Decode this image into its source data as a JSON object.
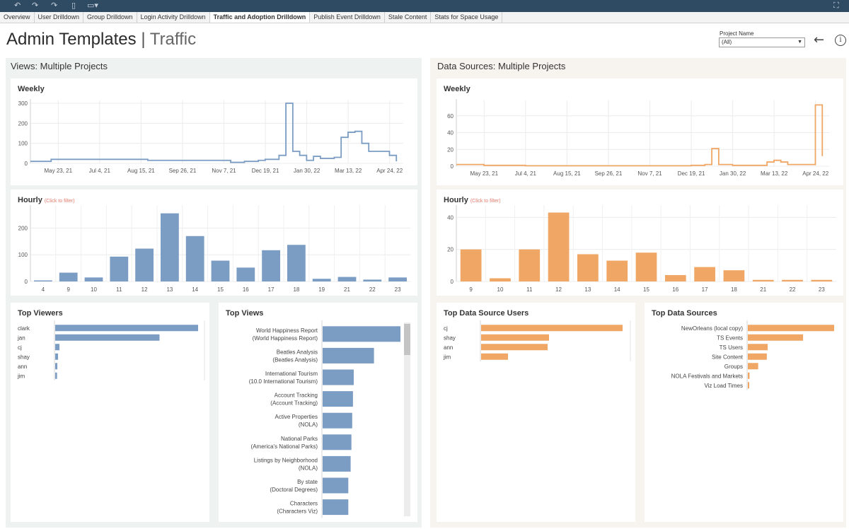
{
  "toolbar": {
    "undo_icon": "undo-icon",
    "redo_icon": "redo-icon",
    "revert_icon": "revert-icon",
    "fullscreen_icon": "fullscreen-icon"
  },
  "tabs": [
    {
      "label": "Overview",
      "active": false
    },
    {
      "label": "User Drilldown",
      "active": false
    },
    {
      "label": "Group Drilldown",
      "active": false
    },
    {
      "label": "Login Activity Drilldown",
      "active": false
    },
    {
      "label": "Traffic and Adoption Drilldown",
      "active": true
    },
    {
      "label": "Publish Event Drilldown",
      "active": false
    },
    {
      "label": "Stale Content",
      "active": false
    },
    {
      "label": "Stats for Space Usage",
      "active": false
    }
  ],
  "header": {
    "title": "Admin Templates",
    "separator": "|",
    "subtitle": "Traffic",
    "filter_label": "Project Name",
    "filter_value": "(All)"
  },
  "colors": {
    "views": "#7b9cc3",
    "data_sources": "#f0a766",
    "hint": "#e07a6a"
  },
  "views_panel": {
    "title": "Views: Multiple Projects",
    "weekly_title": "Weekly",
    "hourly_title": "Hourly",
    "hourly_hint": "(Click to filter)",
    "top_viewers_title": "Top Viewers",
    "top_views_title": "Top Views"
  },
  "ds_panel": {
    "title": "Data Sources: Multiple Projects",
    "weekly_title": "Weekly",
    "hourly_title": "Hourly",
    "hourly_hint": "(Click to filter)",
    "top_users_title": "Top Data Source Users",
    "top_sources_title": "Top Data Sources"
  },
  "chart_data": [
    {
      "id": "views_weekly",
      "type": "line",
      "title": "Weekly",
      "x_tick_labels": [
        "May 23, 21",
        "Jul 4, 21",
        "Aug 15, 21",
        "Sep 26, 21",
        "Nov 7, 21",
        "Dec 19, 21",
        "Jan 30, 22",
        "Mar 13, 22",
        "Apr 24, 22"
      ],
      "y_ticks": [
        0,
        100,
        200,
        300
      ],
      "ylim": [
        0,
        300
      ],
      "x_start": "2021-04-25",
      "x_end": "2022-05-08",
      "points": [
        [
          "2021-04-25",
          10
        ],
        [
          "2021-05-09",
          10
        ],
        [
          "2021-05-16",
          20
        ],
        [
          "2021-05-23",
          20
        ],
        [
          "2021-06-06",
          20
        ],
        [
          "2021-08-15",
          20
        ],
        [
          "2021-08-22",
          15
        ],
        [
          "2021-09-26",
          15
        ],
        [
          "2021-10-31",
          15
        ],
        [
          "2021-11-07",
          15
        ],
        [
          "2021-11-14",
          5
        ],
        [
          "2021-11-21",
          5
        ],
        [
          "2021-11-28",
          10
        ],
        [
          "2021-12-12",
          15
        ],
        [
          "2021-12-19",
          20
        ],
        [
          "2022-01-02",
          40
        ],
        [
          "2022-01-09",
          300
        ],
        [
          "2022-01-16",
          60
        ],
        [
          "2022-01-23",
          40
        ],
        [
          "2022-01-30",
          15
        ],
        [
          "2022-02-06",
          35
        ],
        [
          "2022-02-13",
          25
        ],
        [
          "2022-02-20",
          25
        ],
        [
          "2022-02-27",
          30
        ],
        [
          "2022-03-06",
          130
        ],
        [
          "2022-03-13",
          155
        ],
        [
          "2022-03-20",
          160
        ],
        [
          "2022-03-27",
          100
        ],
        [
          "2022-04-03",
          60
        ],
        [
          "2022-04-24",
          40
        ],
        [
          "2022-05-01",
          10
        ]
      ]
    },
    {
      "id": "views_hourly",
      "type": "bar",
      "title": "Hourly",
      "categories": [
        "4",
        "9",
        "10",
        "11",
        "12",
        "13",
        "14",
        "15",
        "16",
        "17",
        "18",
        "19",
        "21",
        "22",
        "23"
      ],
      "values": [
        3,
        33,
        15,
        93,
        123,
        255,
        170,
        78,
        52,
        117,
        137,
        10,
        17,
        7,
        15
      ],
      "y_ticks": [
        0,
        100,
        200
      ],
      "ylim": [
        0,
        270
      ]
    },
    {
      "id": "top_viewers",
      "type": "bar",
      "orientation": "horizontal",
      "title": "Top Viewers",
      "categories": [
        "clark",
        "jan",
        "cj",
        "shay",
        "ann",
        "jim"
      ],
      "values": [
        100,
        73,
        3,
        2,
        1.5,
        1.3
      ]
    },
    {
      "id": "top_views",
      "type": "bar",
      "orientation": "horizontal",
      "title": "Top Views",
      "categories": [
        [
          "World Happiness Report",
          "(World Happiness Report)"
        ],
        [
          "Beatles Analysis",
          "(Beatles Analysis)"
        ],
        [
          "International Tourism",
          "(10.0 International Tourism)"
        ],
        [
          "Account Tracking",
          "(Account Tracking)"
        ],
        [
          "Active Properties",
          "(NOLA)"
        ],
        [
          "National Parks",
          "(America's National Parks)"
        ],
        [
          "Listings by Neighborhood",
          "(NOLA)"
        ],
        [
          "By state",
          "(Doctoral Degrees)"
        ],
        [
          "Characters",
          "(Characters Viz)"
        ]
      ],
      "values": [
        100,
        66,
        40,
        39,
        38,
        37,
        36,
        33,
        33
      ]
    },
    {
      "id": "ds_weekly",
      "type": "line",
      "title": "Weekly",
      "x_tick_labels": [
        "May 23, 21",
        "Jul 4, 21",
        "Aug 15, 21",
        "Sep 26, 21",
        "Nov 7, 21",
        "Dec 19, 21",
        "Jan 30, 22",
        "Mar 13, 22",
        "Apr 24, 22"
      ],
      "y_ticks": [
        0,
        20,
        40,
        60
      ],
      "ylim": [
        0,
        75
      ],
      "x_start": "2021-04-25",
      "x_end": "2022-05-08",
      "points": [
        [
          "2021-04-25",
          2
        ],
        [
          "2021-05-23",
          1
        ],
        [
          "2021-07-04",
          0.5
        ],
        [
          "2021-09-26",
          0.5
        ],
        [
          "2021-11-07",
          0.5
        ],
        [
          "2021-12-19",
          1
        ],
        [
          "2022-01-02",
          2
        ],
        [
          "2022-01-09",
          21
        ],
        [
          "2022-01-16",
          2
        ],
        [
          "2022-01-30",
          1
        ],
        [
          "2022-02-27",
          1
        ],
        [
          "2022-03-06",
          5
        ],
        [
          "2022-03-13",
          7
        ],
        [
          "2022-03-20",
          5
        ],
        [
          "2022-03-27",
          2
        ],
        [
          "2022-04-17",
          2
        ],
        [
          "2022-04-24",
          73
        ],
        [
          "2022-05-01",
          12
        ]
      ]
    },
    {
      "id": "ds_hourly",
      "type": "bar",
      "title": "Hourly",
      "categories": [
        "9",
        "10",
        "11",
        "12",
        "13",
        "14",
        "15",
        "16",
        "17",
        "18",
        "21",
        "22",
        "23"
      ],
      "values": [
        20,
        2,
        20,
        43,
        17,
        13,
        18,
        4,
        9,
        7,
        1,
        1,
        1
      ],
      "y_ticks": [
        0,
        20,
        40
      ],
      "ylim": [
        0,
        45
      ]
    },
    {
      "id": "top_ds_users",
      "type": "bar",
      "orientation": "horizontal",
      "title": "Top Data Source Users",
      "categories": [
        "cj",
        "shay",
        "ann",
        "jim"
      ],
      "values": [
        100,
        48,
        47,
        19
      ]
    },
    {
      "id": "top_data_sources",
      "type": "bar",
      "orientation": "horizontal",
      "title": "Top Data Sources",
      "categories": [
        "NewOrleans (local copy)",
        "TS Events",
        "TS Users",
        "Site Content",
        "Groups",
        "NOLA Festivals and Markets",
        "Viz Load Times"
      ],
      "values": [
        100,
        64,
        23,
        22,
        12,
        2,
        1.5
      ]
    }
  ]
}
